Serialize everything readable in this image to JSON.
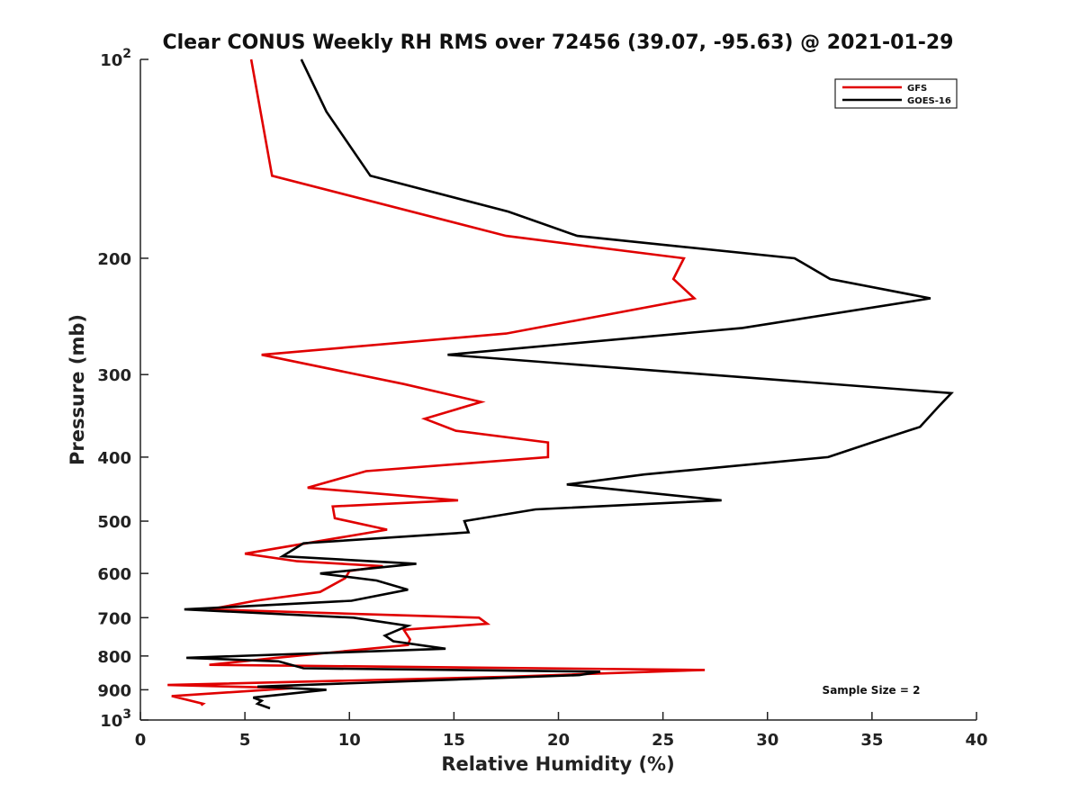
{
  "chart_data": {
    "type": "line",
    "title": "Clear CONUS Weekly RH RMS over 72456 (39.07, -95.63) @ 2021-01-29",
    "xlabel": "Relative Humidity (%)",
    "ylabel": "Pressure (mb)",
    "xlim": [
      0,
      40
    ],
    "ylim": [
      100,
      1000
    ],
    "yscale": "log",
    "y_reversed": true,
    "x_ticks": [
      "0",
      "5",
      "10",
      "15",
      "20",
      "25",
      "30",
      "35",
      "40"
    ],
    "y_ticks": [
      {
        "value": 100,
        "base": "10",
        "exp": "2"
      },
      {
        "value": 200,
        "label": "200"
      },
      {
        "value": 300,
        "label": "300"
      },
      {
        "value": 400,
        "label": "400"
      },
      {
        "value": 500,
        "label": "500"
      },
      {
        "value": 600,
        "label": "600"
      },
      {
        "value": 700,
        "label": "700"
      },
      {
        "value": 800,
        "label": "800"
      },
      {
        "value": 900,
        "label": "900"
      },
      {
        "value": 1000,
        "base": "10",
        "exp": "3"
      }
    ],
    "legend_position": "top-right",
    "annotation": "Sample Size = 2",
    "series": [
      {
        "name": "GFS",
        "color": "#e00000",
        "points": [
          [
            5.3,
            100
          ],
          [
            6.3,
            150
          ],
          [
            17.5,
            185
          ],
          [
            26.0,
            200
          ],
          [
            25.5,
            215
          ],
          [
            26.5,
            230
          ],
          [
            17.5,
            260
          ],
          [
            5.8,
            280
          ],
          [
            12.6,
            310
          ],
          [
            16.3,
            330
          ],
          [
            13.6,
            350
          ],
          [
            15.1,
            365
          ],
          [
            19.5,
            380
          ],
          [
            19.5,
            400
          ],
          [
            10.8,
            420
          ],
          [
            8.0,
            445
          ],
          [
            15.2,
            465
          ],
          [
            9.2,
            475
          ],
          [
            9.3,
            495
          ],
          [
            11.8,
            515
          ],
          [
            5.0,
            560
          ],
          [
            7.5,
            575
          ],
          [
            11.6,
            585
          ],
          [
            10.0,
            595
          ],
          [
            9.8,
            610
          ],
          [
            8.6,
            640
          ],
          [
            5.5,
            660
          ],
          [
            3.3,
            680
          ],
          [
            16.2,
            700
          ],
          [
            16.6,
            715
          ],
          [
            12.6,
            730
          ],
          [
            12.9,
            755
          ],
          [
            12.8,
            770
          ],
          [
            6.5,
            805
          ],
          [
            3.3,
            825
          ],
          [
            27.0,
            840
          ],
          [
            17.6,
            860
          ],
          [
            1.3,
            885
          ],
          [
            7.3,
            895
          ],
          [
            1.5,
            920
          ],
          [
            3.0,
            945
          ],
          [
            2.9,
            950
          ]
        ]
      },
      {
        "name": "GOES-16",
        "color": "#000000",
        "points": [
          [
            7.7,
            100
          ],
          [
            8.9,
            120
          ],
          [
            11.0,
            150
          ],
          [
            17.6,
            170
          ],
          [
            20.9,
            185
          ],
          [
            31.3,
            200
          ],
          [
            33.0,
            215
          ],
          [
            37.8,
            230
          ],
          [
            28.8,
            255
          ],
          [
            14.7,
            280
          ],
          [
            38.8,
            320
          ],
          [
            38.2,
            335
          ],
          [
            37.3,
            360
          ],
          [
            35.0,
            380
          ],
          [
            32.9,
            400
          ],
          [
            24.1,
            425
          ],
          [
            20.4,
            440
          ],
          [
            27.8,
            465
          ],
          [
            18.9,
            480
          ],
          [
            15.5,
            500
          ],
          [
            15.7,
            520
          ],
          [
            7.8,
            540
          ],
          [
            6.8,
            565
          ],
          [
            13.2,
            580
          ],
          [
            8.6,
            600
          ],
          [
            11.3,
            615
          ],
          [
            12.8,
            635
          ],
          [
            10.1,
            660
          ],
          [
            2.1,
            680
          ],
          [
            10.2,
            700
          ],
          [
            12.8,
            720
          ],
          [
            11.7,
            745
          ],
          [
            12.1,
            760
          ],
          [
            14.6,
            780
          ],
          [
            2.2,
            805
          ],
          [
            6.6,
            815
          ],
          [
            7.8,
            835
          ],
          [
            22.0,
            845
          ],
          [
            21.0,
            855
          ],
          [
            5.6,
            890
          ],
          [
            8.9,
            900
          ],
          [
            5.4,
            925
          ],
          [
            5.8,
            935
          ],
          [
            5.6,
            945
          ],
          [
            6.2,
            960
          ]
        ]
      }
    ]
  }
}
